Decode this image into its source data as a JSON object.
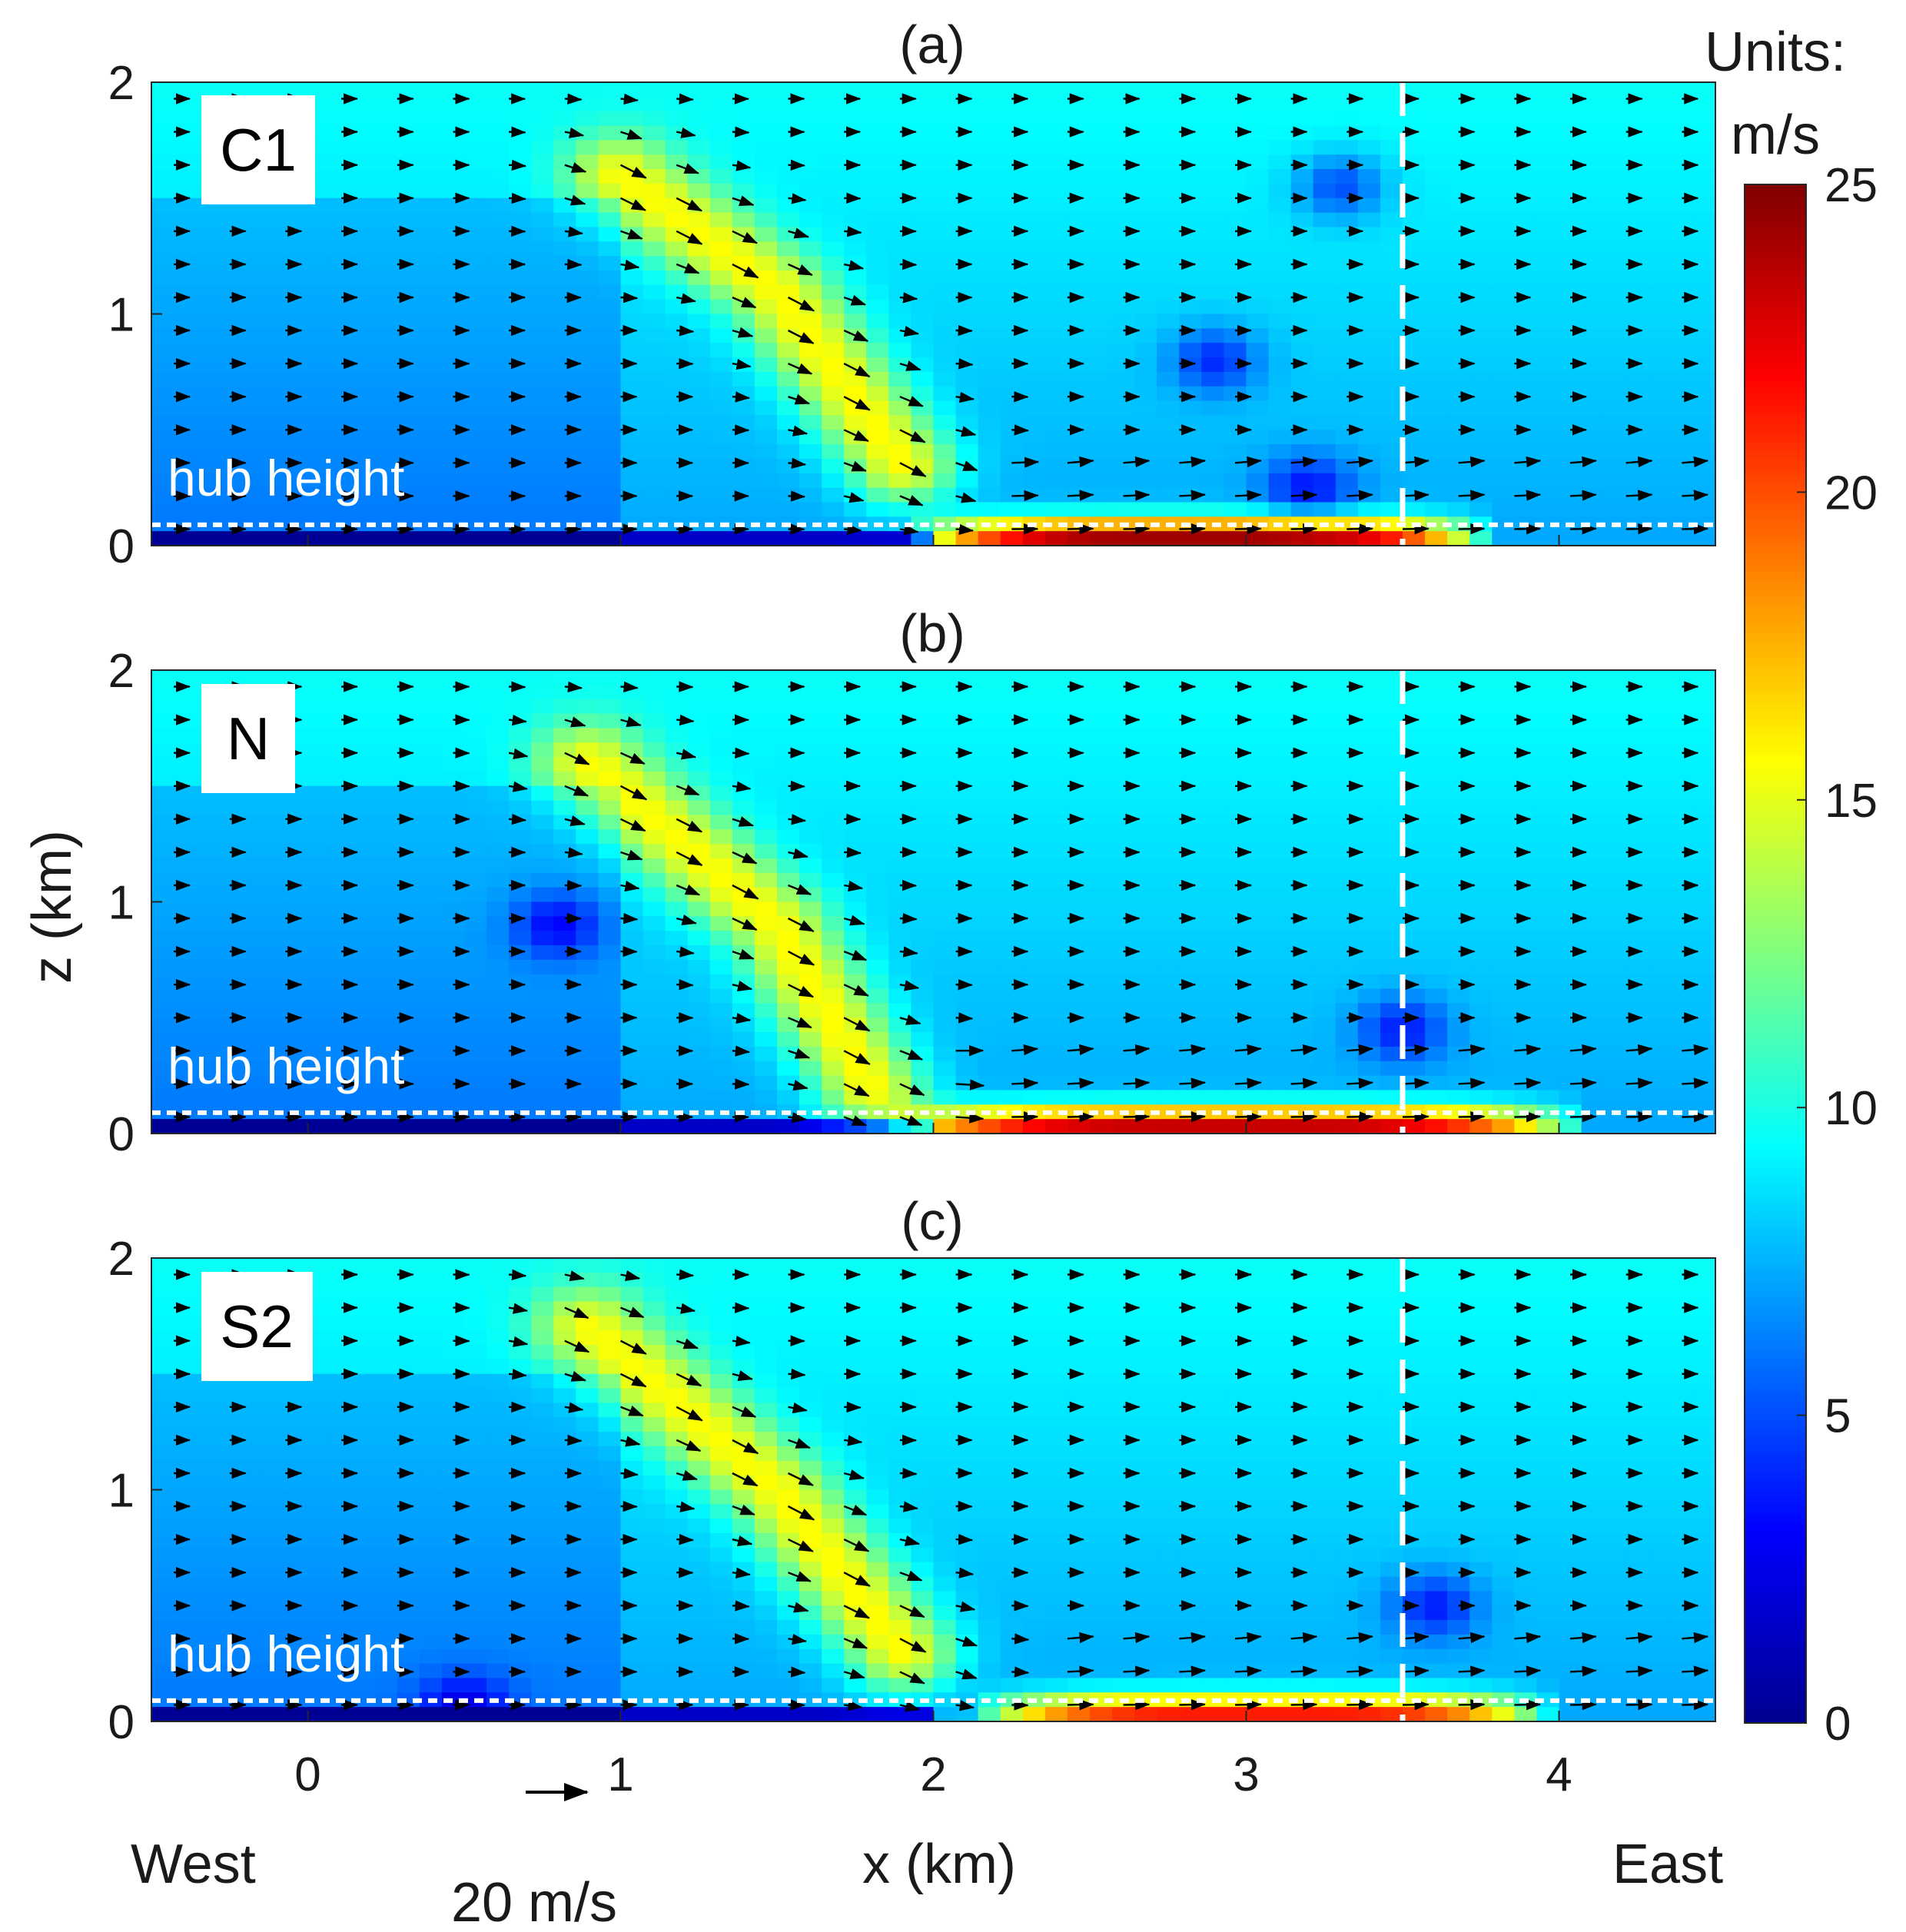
{
  "chart_data": {
    "type": "heatmap",
    "panels": [
      {
        "title": "(a)",
        "case_label": "C1",
        "jet": [
          [
            1.0,
            1.6
          ],
          [
            1.5,
            1.1
          ],
          [
            1.9,
            0.35
          ]
        ],
        "surface_jet": [
          2.1,
          3.6
        ],
        "surface_peak": 25,
        "dark_regions": [
          [
            3.3,
            1.55
          ],
          [
            2.9,
            0.8
          ],
          [
            3.2,
            0.25
          ]
        ]
      },
      {
        "title": "(b)",
        "case_label": "N",
        "jet": [
          [
            0.9,
            1.6
          ],
          [
            1.5,
            0.9
          ],
          [
            1.8,
            0.2
          ]
        ],
        "surface_jet": [
          2.0,
          3.9
        ],
        "surface_peak": 24,
        "dark_regions": [
          [
            3.5,
            0.45
          ],
          [
            0.8,
            0.9
          ]
        ]
      },
      {
        "title": "(c)",
        "case_label": "S2",
        "jet": [
          [
            0.9,
            1.7
          ],
          [
            1.5,
            1.0
          ],
          [
            1.9,
            0.3
          ]
        ],
        "surface_jet": [
          2.3,
          3.8
        ],
        "surface_peak": 22,
        "dark_regions": [
          [
            3.6,
            0.5
          ],
          [
            0.5,
            0.05
          ]
        ]
      }
    ],
    "xlabel": "x (km)",
    "ylabel": "z (km)",
    "xlim": [
      -0.5,
      4.5
    ],
    "ylim": [
      0,
      2
    ],
    "x_ticks": [
      "0",
      "1",
      "2",
      "3",
      "4"
    ],
    "y_ticks": [
      "0",
      "1",
      "2"
    ],
    "hub_height_km": 0.09,
    "hub_label": "hub height",
    "dashed_vertical_x_km": 3.5,
    "west_label": "West",
    "east_label": "East",
    "reference_arrow_label": "20 m/s",
    "reference_arrow_ms": 20,
    "colorbar": {
      "title_line1": "Units:",
      "title_line2": "m/s",
      "range": [
        0,
        25
      ],
      "ticks": [
        "0",
        "5",
        "10",
        "15",
        "20",
        "25"
      ],
      "colormap": "jet"
    }
  }
}
